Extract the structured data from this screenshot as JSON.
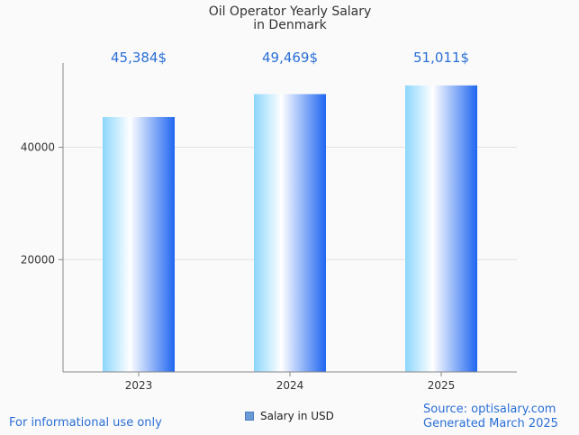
{
  "chart_data": {
    "type": "bar",
    "title": [
      "Oil Operator Yearly Salary",
      "in Denmark"
    ],
    "categories": [
      "2023",
      "2024",
      "2025"
    ],
    "series": [
      {
        "name": "Salary in USD",
        "values": [
          45384,
          49469,
          51011
        ],
        "labels": [
          "45,384$",
          "49,469$",
          "51,011$"
        ]
      }
    ],
    "yticks": [
      20000,
      40000
    ],
    "ytick_labels": [
      "20000",
      "40000"
    ],
    "ylim": [
      0,
      55000
    ],
    "grid": true,
    "legend_position": "bottom"
  },
  "footer": {
    "disclaimer": "For informational use only",
    "source": "Source: optisalary.com",
    "generated": "Generated March 2025"
  },
  "colors": {
    "label_blue": "#2a6fd6",
    "bar_light": "#7fd0fb",
    "bar_white": "#ffffff",
    "bar_dark": "#1f66f0"
  }
}
